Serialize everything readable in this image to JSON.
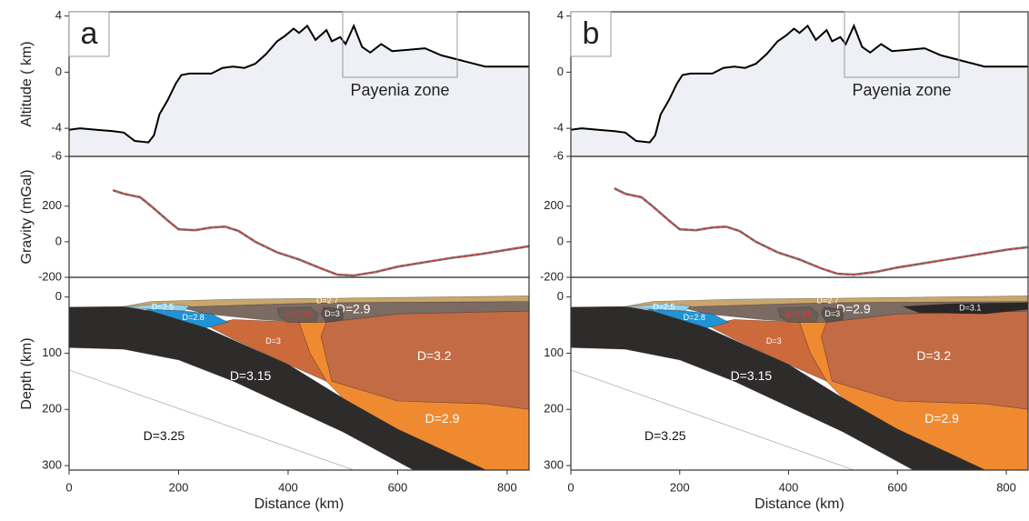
{
  "chart_data": [
    {
      "type": "line",
      "panel_label": "a",
      "y_label": "Altitude ( km)",
      "annotation": "Payenia zone",
      "color": "#000000",
      "fill": "#eef0f5",
      "x": [
        0,
        20,
        50,
        80,
        100,
        120,
        145,
        155,
        165,
        180,
        195,
        205,
        220,
        260,
        280,
        300,
        320,
        340,
        360,
        380,
        395,
        410,
        420,
        435,
        450,
        470,
        480,
        495,
        505,
        520,
        535,
        550,
        570,
        590,
        620,
        650,
        680,
        710,
        760,
        800,
        840
      ],
      "values": [
        -4.1,
        -4.0,
        -4.1,
        -4.2,
        -4.3,
        -4.9,
        -5.0,
        -4.5,
        -3.0,
        -2.0,
        -0.8,
        -0.2,
        -0.1,
        -0.1,
        0.3,
        0.4,
        0.3,
        0.6,
        1.3,
        2.2,
        2.6,
        3.1,
        2.8,
        3.3,
        2.3,
        3.0,
        2.2,
        2.5,
        2.0,
        3.3,
        1.8,
        1.4,
        2.0,
        1.5,
        1.6,
        1.7,
        1.2,
        0.9,
        0.4,
        0.4,
        0.4
      ],
      "xlim": [
        0,
        840
      ],
      "ylim": [
        -6,
        4.3
      ],
      "yticks": [
        -6,
        -4,
        0,
        4
      ]
    },
    {
      "type": "line",
      "y_label": "Gravity (mGal)",
      "x": [
        80,
        100,
        130,
        150,
        180,
        200,
        230,
        260,
        285,
        310,
        340,
        380,
        420,
        460,
        490,
        520,
        560,
        600,
        650,
        700,
        750,
        800,
        840
      ],
      "series": [
        {
          "color": "#7a7a7a",
          "dash": false,
          "values": [
            290,
            270,
            250,
            200,
            120,
            70,
            65,
            80,
            85,
            60,
            0,
            -60,
            -100,
            -150,
            -185,
            -190,
            -170,
            -140,
            -115,
            -90,
            -70,
            -45,
            -25
          ]
        },
        {
          "color": "#e0302a",
          "dash": true,
          "values": [
            290,
            270,
            250,
            200,
            120,
            70,
            65,
            80,
            85,
            60,
            0,
            -60,
            -100,
            -150,
            -185,
            -190,
            -170,
            -140,
            -115,
            -90,
            -70,
            -45,
            -25
          ]
        }
      ],
      "xlim": [
        0,
        840
      ],
      "ylim": [
        -200,
        480
      ],
      "yticks": [
        -200,
        0,
        200
      ]
    },
    {
      "type": "section",
      "y_label": "Depth (km)",
      "x_label": "Distance (km)",
      "y_inverted": true,
      "xlim": [
        0,
        840
      ],
      "ylim": [
        -35,
        308
      ],
      "xticks": [
        0,
        200,
        400,
        600,
        800
      ],
      "yticks": [
        0,
        100,
        200,
        300
      ],
      "bodies": [
        {
          "label": "D=3.25",
          "color": "#ffffff",
          "label_color": "#111111",
          "x": [
            0,
            0,
            520
          ],
          "y": [
            130,
            308,
            308
          ]
        },
        {
          "label": "D=3.15",
          "color": "#2e2b2b",
          "label_color": "#ffffff",
          "x": [
            0,
            100,
            150,
            250,
            400,
            500,
            600,
            700,
            762,
            629,
            500,
            400,
            300,
            200,
            100,
            0
          ],
          "y": [
            18,
            17,
            25,
            55,
            120,
            180,
            235,
            280,
            308,
            308,
            240,
            195,
            150,
            112,
            93,
            90
          ]
        },
        {
          "label": "D=2.9",
          "color": "#f08a30",
          "label_color": "#ffffff",
          "x": [
            420,
            470,
            460,
            480,
            600,
            760,
            840,
            840,
            762,
            700,
            600,
            500,
            470,
            440
          ],
          "y": [
            45,
            45,
            70,
            150,
            185,
            190,
            200,
            308,
            308,
            280,
            235,
            180,
            150,
            100
          ]
        },
        {
          "label": "D=3",
          "color": "#cc6a3c",
          "label_color": "#ffffff",
          "x": [
            250,
            300,
            420,
            440,
            470,
            400,
            300
          ],
          "y": [
            50,
            40,
            45,
            100,
            150,
            120,
            75
          ]
        },
        {
          "label": "D=3.2",
          "color": "#c26b45",
          "label_color": "#ffffff",
          "x": [
            470,
            600,
            840,
            840,
            760,
            600,
            480,
            460
          ],
          "y": [
            45,
            30,
            25,
            200,
            190,
            185,
            150,
            70
          ]
        },
        {
          "label": "D=2.9",
          "color": "#7b6b63",
          "label_color": "#ffffff",
          "x": [
            200,
            400,
            500,
            840,
            840,
            600,
            470,
            420,
            350,
            250
          ],
          "y": [
            18,
            12,
            10,
            8,
            25,
            30,
            45,
            45,
            40,
            30
          ]
        },
        {
          "label": "D=2.7",
          "color": "#c9a66b",
          "label_color": "#ffffff",
          "x": [
            100,
            150,
            300,
            500,
            840,
            840,
            500,
            400,
            200
          ],
          "y": [
            17,
            8,
            4,
            2,
            -2,
            8,
            10,
            12,
            18
          ]
        },
        {
          "label": "D=2.85",
          "color": "#6a5e58",
          "label_color": "#ff2a2a",
          "x": [
            380,
            440,
            455,
            450,
            400,
            385
          ],
          "y": [
            20,
            18,
            30,
            45,
            45,
            35
          ]
        },
        {
          "label": "D=3",
          "color": "#5a524e",
          "label_color": "#ffffff",
          "x": [
            465,
            500,
            500,
            470,
            460
          ],
          "y": [
            18,
            22,
            40,
            45,
            30
          ]
        },
        {
          "label": "D=2.5",
          "color": "#8dd3f0",
          "label_color": "#ffffff",
          "x": [
            100,
            170,
            220,
            210,
            150
          ],
          "y": [
            18,
            12,
            16,
            25,
            22
          ]
        },
        {
          "label": "D=2.8",
          "color": "#1f93d6",
          "label_color": "#ffffff",
          "x": [
            140,
            210,
            260,
            290,
            250,
            200
          ],
          "y": [
            22,
            25,
            30,
            45,
            55,
            40
          ]
        }
      ]
    },
    {
      "type": "line",
      "panel_label": "b",
      "annotation": "Payenia zone",
      "color": "#000000",
      "fill": "#eef0f5",
      "x": [
        0,
        20,
        50,
        80,
        100,
        120,
        145,
        155,
        165,
        180,
        195,
        205,
        220,
        260,
        280,
        300,
        320,
        340,
        360,
        380,
        395,
        410,
        420,
        435,
        450,
        470,
        480,
        495,
        505,
        520,
        535,
        550,
        570,
        590,
        620,
        650,
        680,
        710,
        760,
        800,
        840
      ],
      "values": [
        -4.1,
        -4.0,
        -4.1,
        -4.2,
        -4.3,
        -4.9,
        -5.0,
        -4.5,
        -3.0,
        -2.0,
        -0.8,
        -0.2,
        -0.1,
        -0.1,
        0.3,
        0.4,
        0.3,
        0.6,
        1.3,
        2.2,
        2.6,
        3.1,
        2.8,
        3.3,
        2.3,
        3.0,
        2.2,
        2.5,
        2.0,
        3.3,
        1.8,
        1.4,
        2.0,
        1.5,
        1.6,
        1.7,
        1.2,
        0.9,
        0.4,
        0.4,
        0.4
      ],
      "xlim": [
        0,
        840
      ],
      "ylim": [
        -6,
        4.3
      ],
      "yticks": [
        -6,
        -4,
        0,
        4
      ]
    },
    {
      "type": "line",
      "x": [
        80,
        100,
        130,
        150,
        180,
        200,
        230,
        260,
        285,
        310,
        340,
        380,
        420,
        460,
        490,
        520,
        560,
        600,
        650,
        700,
        750,
        800,
        840
      ],
      "series": [
        {
          "color": "#7a7a7a",
          "dash": false,
          "values": [
            300,
            270,
            250,
            200,
            120,
            70,
            65,
            80,
            85,
            60,
            0,
            -60,
            -100,
            -150,
            -180,
            -185,
            -170,
            -145,
            -120,
            -95,
            -70,
            -45,
            -30
          ]
        },
        {
          "color": "#e0302a",
          "dash": true,
          "values": [
            300,
            270,
            250,
            200,
            120,
            70,
            65,
            80,
            85,
            60,
            0,
            -60,
            -100,
            -150,
            -180,
            -185,
            -170,
            -145,
            -120,
            -95,
            -70,
            -45,
            -30
          ]
        }
      ],
      "xlim": [
        0,
        840
      ],
      "ylim": [
        -200,
        480
      ],
      "yticks": [
        -200,
        0,
        200
      ]
    },
    {
      "type": "section",
      "x_label": "Distance (km)",
      "y_inverted": true,
      "xlim": [
        0,
        840
      ],
      "ylim": [
        -35,
        308
      ],
      "xticks": [
        0,
        200,
        400,
        600,
        800
      ],
      "yticks": [
        0,
        100,
        200,
        300
      ],
      "bodies": [
        {
          "label": "D=3.25",
          "color": "#ffffff",
          "label_color": "#111111",
          "x": [
            0,
            0,
            520
          ],
          "y": [
            130,
            308,
            308
          ]
        },
        {
          "label": "D=3.15",
          "color": "#2e2b2b",
          "label_color": "#ffffff",
          "x": [
            0,
            100,
            150,
            250,
            400,
            500,
            600,
            700,
            762,
            629,
            500,
            400,
            300,
            200,
            100,
            0
          ],
          "y": [
            18,
            17,
            25,
            55,
            120,
            180,
            235,
            280,
            308,
            308,
            240,
            195,
            150,
            112,
            93,
            90
          ]
        },
        {
          "label": "D=2.9",
          "color": "#f08a30",
          "label_color": "#ffffff",
          "x": [
            420,
            470,
            460,
            480,
            600,
            760,
            840,
            840,
            762,
            700,
            600,
            500,
            470,
            440
          ],
          "y": [
            45,
            45,
            70,
            150,
            185,
            190,
            200,
            308,
            308,
            280,
            235,
            180,
            150,
            100
          ]
        },
        {
          "label": "D=3",
          "color": "#cc6a3c",
          "label_color": "#ffffff",
          "x": [
            250,
            300,
            420,
            440,
            470,
            400,
            300
          ],
          "y": [
            50,
            40,
            45,
            100,
            150,
            120,
            75
          ]
        },
        {
          "label": "D=3.2",
          "color": "#c26b45",
          "label_color": "#ffffff",
          "x": [
            470,
            600,
            840,
            840,
            760,
            600,
            480,
            460
          ],
          "y": [
            45,
            30,
            25,
            200,
            190,
            185,
            150,
            70
          ]
        },
        {
          "label": "D=2.9",
          "color": "#7b6b63",
          "label_color": "#ffffff",
          "x": [
            200,
            400,
            500,
            840,
            840,
            600,
            470,
            420,
            350,
            250
          ],
          "y": [
            18,
            12,
            10,
            8,
            25,
            30,
            45,
            45,
            40,
            30
          ]
        },
        {
          "label": "D=2.7",
          "color": "#c9a66b",
          "label_color": "#ffffff",
          "x": [
            100,
            150,
            300,
            500,
            840,
            840,
            500,
            400,
            200
          ],
          "y": [
            17,
            8,
            4,
            2,
            -2,
            8,
            10,
            12,
            18
          ]
        },
        {
          "label": "D=2.85",
          "color": "#6a5e58",
          "label_color": "#ff2a2a",
          "x": [
            380,
            440,
            455,
            450,
            400,
            385
          ],
          "y": [
            20,
            18,
            30,
            45,
            45,
            35
          ]
        },
        {
          "label": "D=3",
          "color": "#5a524e",
          "label_color": "#ffffff",
          "x": [
            465,
            500,
            500,
            470,
            460
          ],
          "y": [
            18,
            22,
            40,
            45,
            30
          ]
        },
        {
          "label": "D=2.5",
          "color": "#8dd3f0",
          "label_color": "#ffffff",
          "x": [
            100,
            170,
            220,
            210,
            150
          ],
          "y": [
            18,
            12,
            16,
            25,
            22
          ]
        },
        {
          "label": "D=2.8",
          "color": "#1f93d6",
          "label_color": "#ffffff",
          "x": [
            140,
            210,
            260,
            290,
            250,
            200
          ],
          "y": [
            22,
            25,
            30,
            45,
            55,
            40
          ]
        },
        {
          "label": "D=3.1",
          "color": "#2a2626",
          "label_color": "#ffffff",
          "x": [
            610,
            700,
            840,
            840,
            760,
            640
          ],
          "y": [
            17,
            12,
            10,
            22,
            30,
            28
          ]
        }
      ]
    }
  ]
}
